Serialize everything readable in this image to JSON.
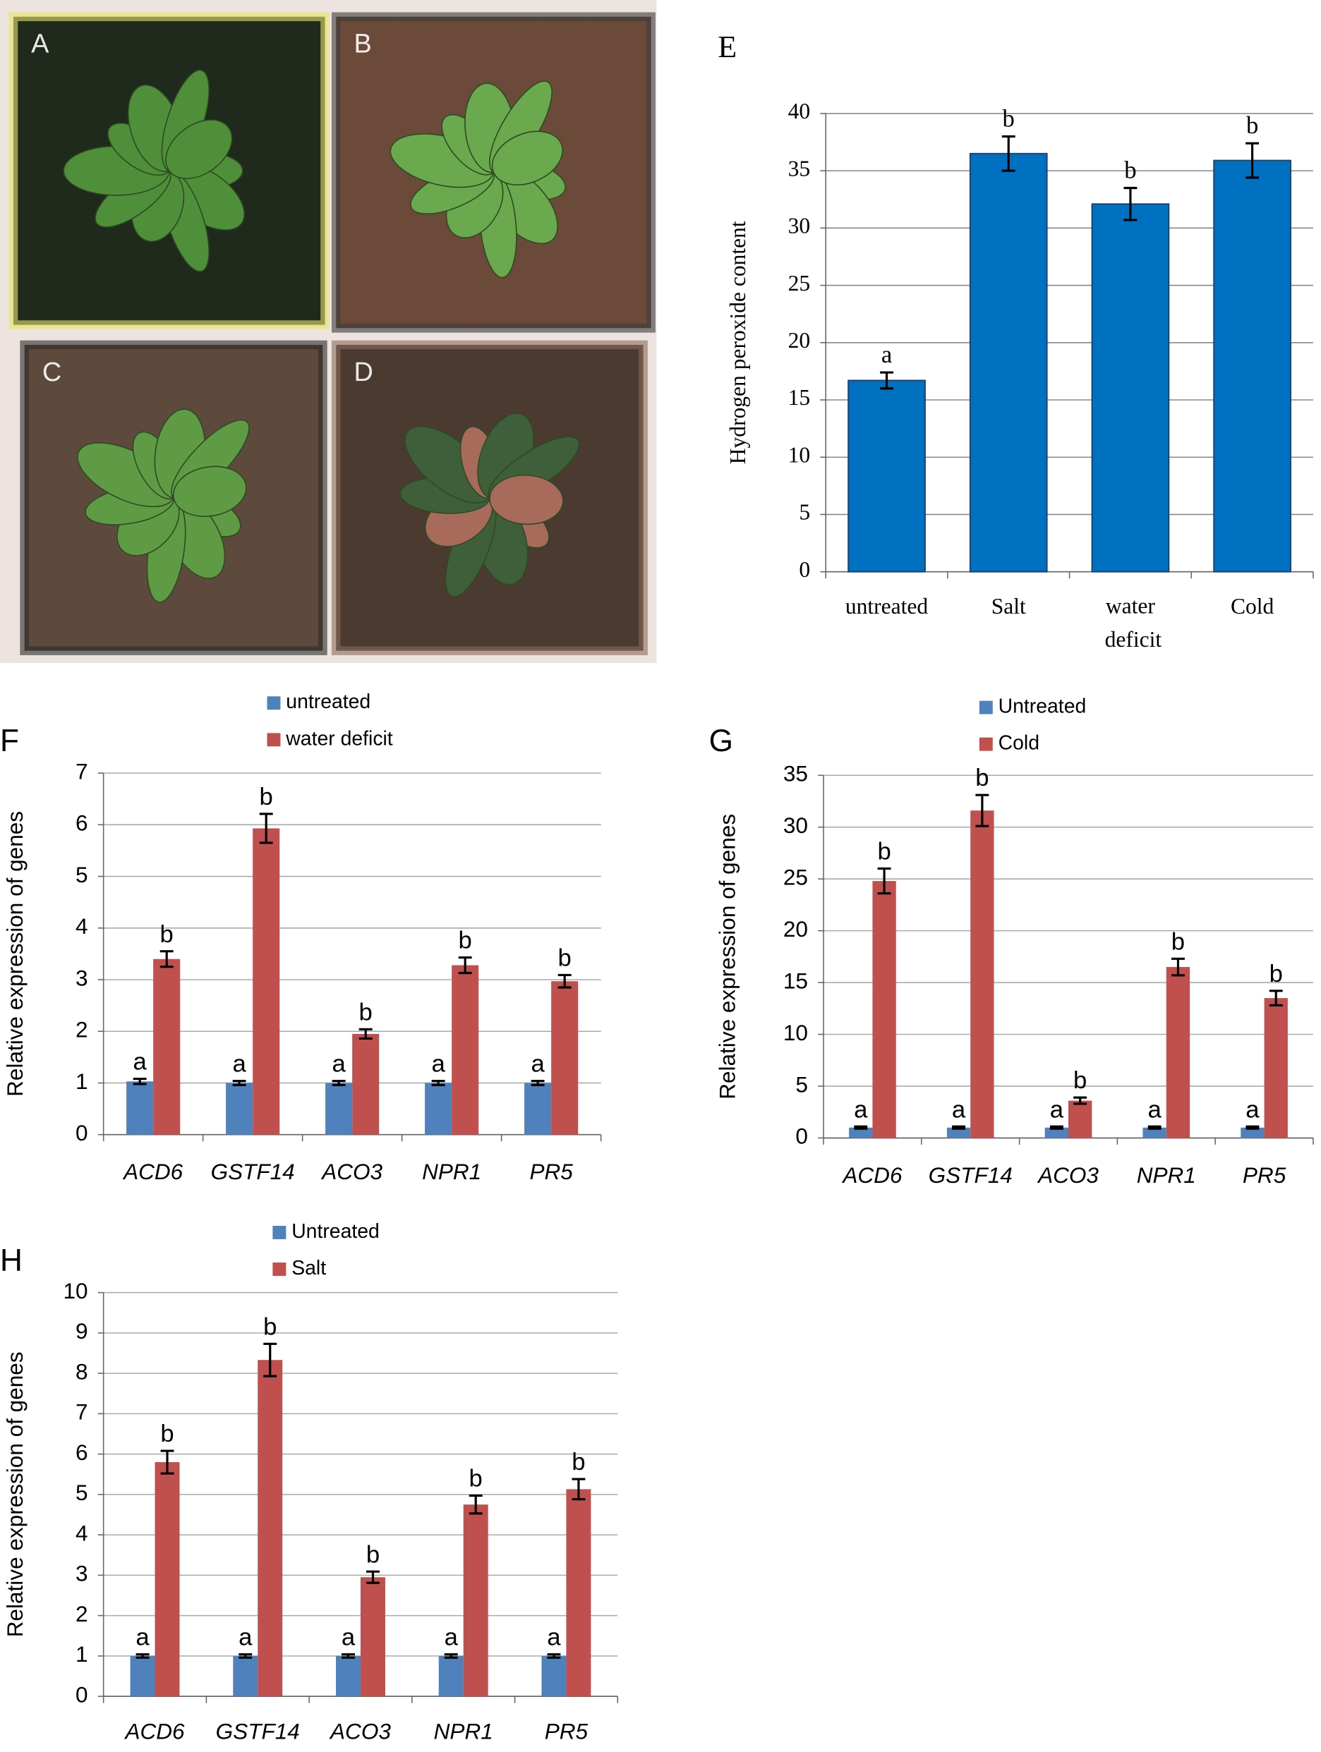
{
  "photos": {
    "labels": [
      "A",
      "B",
      "C",
      "D"
    ]
  },
  "chart_data": [
    {
      "type": "bar",
      "panel": "E",
      "y_label": "Hydrogen peroxide content",
      "categories": [
        "untreated",
        "Salt",
        "water deficit",
        "Cold"
      ],
      "series": [
        {
          "color": "#0070c0",
          "values": [
            16.7,
            36.5,
            32.1,
            35.9
          ],
          "errors": [
            0.7,
            1.5,
            1.4,
            1.5
          ],
          "significance": [
            "a",
            "b",
            "b",
            "b"
          ]
        }
      ],
      "ylim": [
        0,
        40
      ],
      "yticks": [
        0,
        5,
        10,
        15,
        20,
        25,
        30,
        35,
        40
      ],
      "grid": true
    },
    {
      "type": "bar",
      "panel": "F",
      "y_label": "Relative expression of genes",
      "categories": [
        "ACD6",
        "GSTF14",
        "ACO3",
        "NPR1",
        "PR5"
      ],
      "series": [
        {
          "name": "untreated",
          "color": "#4f81bd",
          "values": [
            1.03,
            1.0,
            1.0,
            1.0,
            1.0
          ],
          "errors": [
            0.05,
            0.04,
            0.04,
            0.04,
            0.04
          ],
          "significance": [
            "a",
            "a",
            "a",
            "a",
            "a"
          ]
        },
        {
          "name": "water deficit",
          "color": "#c0504d",
          "values": [
            3.4,
            5.93,
            1.95,
            3.28,
            2.97
          ],
          "errors": [
            0.15,
            0.28,
            0.09,
            0.15,
            0.12
          ],
          "significance": [
            "b",
            "b",
            "b",
            "b",
            "b"
          ]
        }
      ],
      "ylim": [
        0,
        7
      ],
      "yticks": [
        0,
        1,
        2,
        3,
        4,
        5,
        6,
        7
      ],
      "grid": true,
      "legend": "top"
    },
    {
      "type": "bar",
      "panel": "G",
      "y_label": "Relative expression of genes",
      "categories": [
        "ACD6",
        "GSTF14",
        "ACO3",
        "NPR1",
        "PR5"
      ],
      "series": [
        {
          "name": "Untreated",
          "color": "#4f81bd",
          "values": [
            1,
            1,
            1,
            1,
            1
          ],
          "errors": [
            0.1,
            0.1,
            0.1,
            0.1,
            0.1
          ],
          "significance": [
            "a",
            "a",
            "a",
            "a",
            "a"
          ]
        },
        {
          "name": "Cold",
          "color": "#c0504d",
          "values": [
            24.8,
            31.6,
            3.6,
            16.5,
            13.5
          ],
          "errors": [
            1.2,
            1.5,
            0.3,
            0.8,
            0.7
          ],
          "significance": [
            "b",
            "b",
            "b",
            "b",
            "b"
          ]
        }
      ],
      "ylim": [
        0,
        35
      ],
      "yticks": [
        0,
        5,
        10,
        15,
        20,
        25,
        30,
        35
      ],
      "grid": true,
      "legend": "top"
    },
    {
      "type": "bar",
      "panel": "H",
      "y_label": "Relative expression of genes",
      "categories": [
        "ACD6",
        "GSTF14",
        "ACO3",
        "NPR1",
        "PR5"
      ],
      "series": [
        {
          "name": "Untreated",
          "color": "#4f81bd",
          "values": [
            1,
            1,
            1,
            1,
            1
          ],
          "errors": [
            0.04,
            0.04,
            0.04,
            0.04,
            0.04
          ],
          "significance": [
            "a",
            "a",
            "a",
            "a",
            "a"
          ]
        },
        {
          "name": "Salt",
          "color": "#c0504d",
          "values": [
            5.8,
            8.33,
            2.95,
            4.75,
            5.13
          ],
          "errors": [
            0.28,
            0.4,
            0.14,
            0.22,
            0.25
          ],
          "significance": [
            "b",
            "b",
            "b",
            "b",
            "b"
          ]
        }
      ],
      "ylim": [
        0,
        10
      ],
      "yticks": [
        0,
        1,
        2,
        3,
        4,
        5,
        6,
        7,
        8,
        9,
        10
      ],
      "grid": true,
      "legend": "top"
    }
  ]
}
